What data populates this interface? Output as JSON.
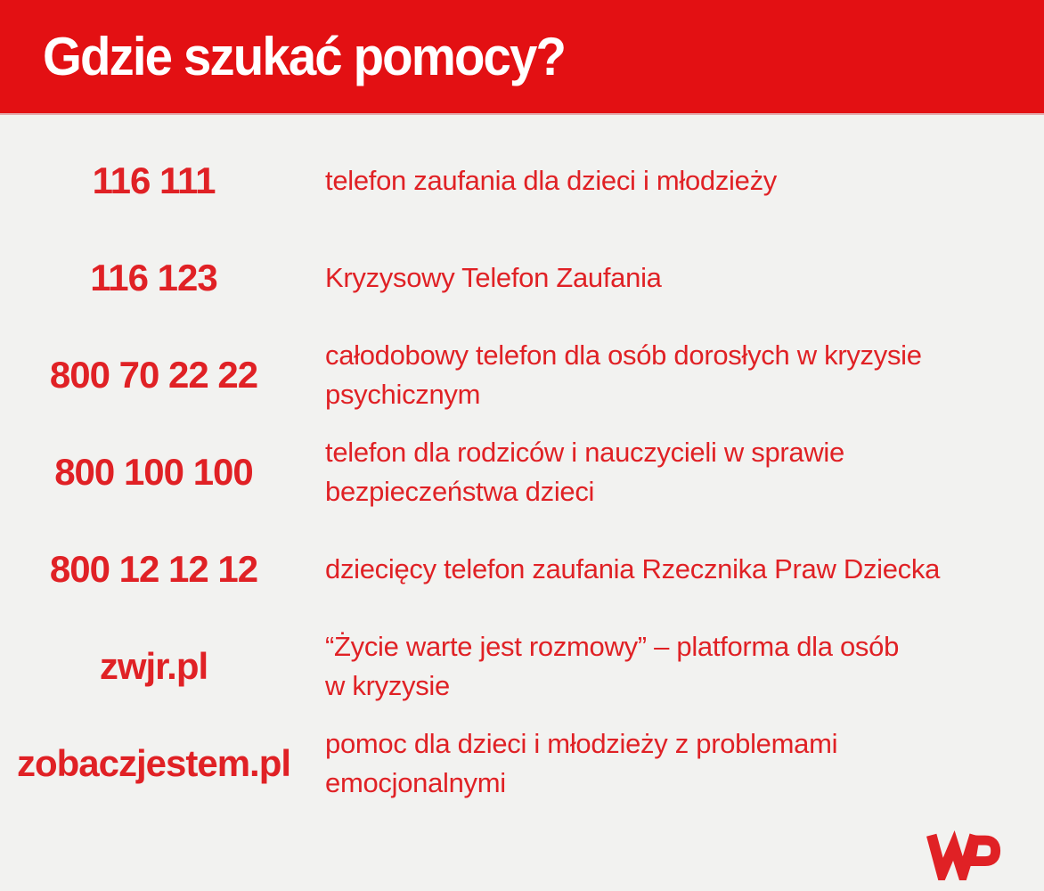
{
  "header": {
    "title": "Gdzie szukać pomocy?"
  },
  "theme": {
    "header_bg": "#e31013",
    "header_text": "#ffffff",
    "body_bg": "#f2f2f0",
    "accent_text": "#e02125"
  },
  "rows": [
    {
      "contact": "116 111",
      "description": "telefon zaufania dla dzieci i młodzieży"
    },
    {
      "contact": "116 123",
      "description": "Kryzysowy Telefon Zaufania"
    },
    {
      "contact": "800 70 22 22",
      "description": "całodobowy telefon dla osób dorosłych w kryzysie\npsychicznym"
    },
    {
      "contact": "800 100 100",
      "description": "telefon dla rodziców i nauczycieli w sprawie\nbezpieczeństwa dzieci"
    },
    {
      "contact": "800 12 12 12",
      "description": "dziecięcy telefon zaufania Rzecznika Praw Dziecka"
    },
    {
      "contact": "zwjr.pl",
      "description": "“Życie warte jest rozmowy” – platforma dla osób\nw kryzysie"
    },
    {
      "contact": "zobaczjestem.pl",
      "description": "pomoc dla dzieci i młodzieży z problemami\nemocjonalnymi"
    }
  ],
  "footer": {
    "logo": "WP"
  }
}
